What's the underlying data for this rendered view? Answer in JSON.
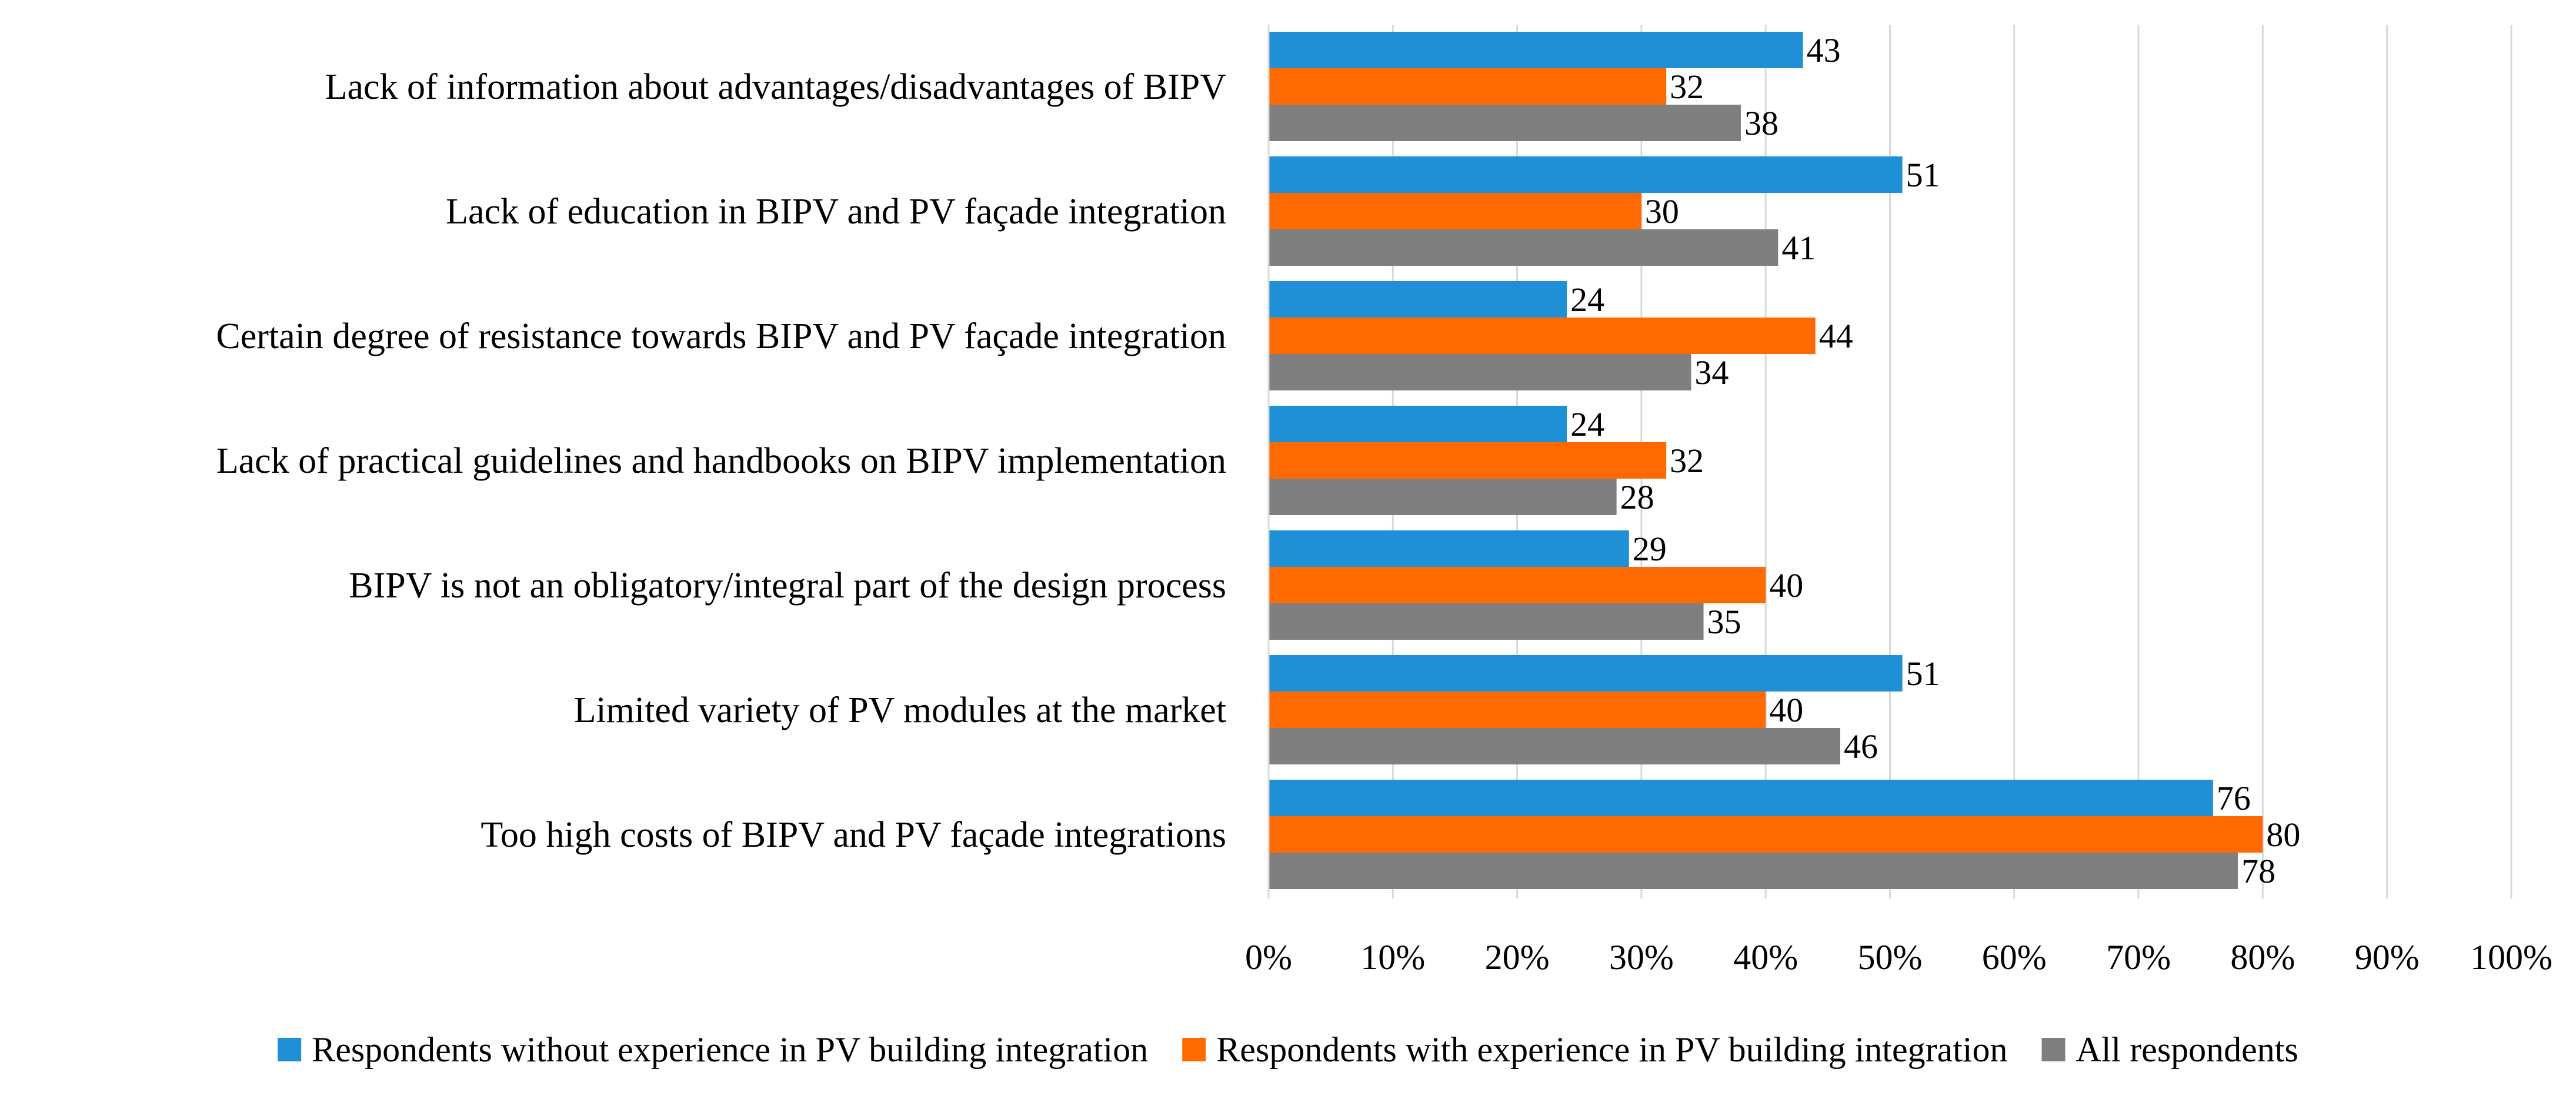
{
  "chart_data": {
    "type": "bar",
    "orientation": "horizontal",
    "title": "",
    "xlabel": "",
    "ylabel": "",
    "xlim": [
      0,
      100
    ],
    "x_ticks": [
      "0%",
      "10%",
      "20%",
      "30%",
      "40%",
      "50%",
      "60%",
      "70%",
      "80%",
      "90%",
      "100%"
    ],
    "grid": true,
    "legend_position": "bottom",
    "categories": [
      "Lack of information about advantages/disadvantages of BIPV",
      "Lack of education in BIPV and PV façade integration",
      "Certain degree of resistance towards BIPV and PV façade integration",
      "Lack of practical guidelines and handbooks on BIPV implementation",
      "BIPV is not an obligatory/integral part of the design process",
      "Limited variety of PV modules at the market",
      "Too high costs of BIPV and PV façade integrations"
    ],
    "series": [
      {
        "name": "Respondents without experience in PV building integration",
        "color": "#1f8fd6",
        "values": [
          43,
          51,
          24,
          24,
          29,
          51,
          76
        ]
      },
      {
        "name": "Respondents with experience in PV building integration",
        "color": "#ff6a00",
        "values": [
          32,
          30,
          44,
          32,
          40,
          40,
          80
        ]
      },
      {
        "name": "All respondents",
        "color": "#7f7f7f",
        "values": [
          38,
          41,
          34,
          28,
          35,
          46,
          78
        ]
      }
    ]
  }
}
